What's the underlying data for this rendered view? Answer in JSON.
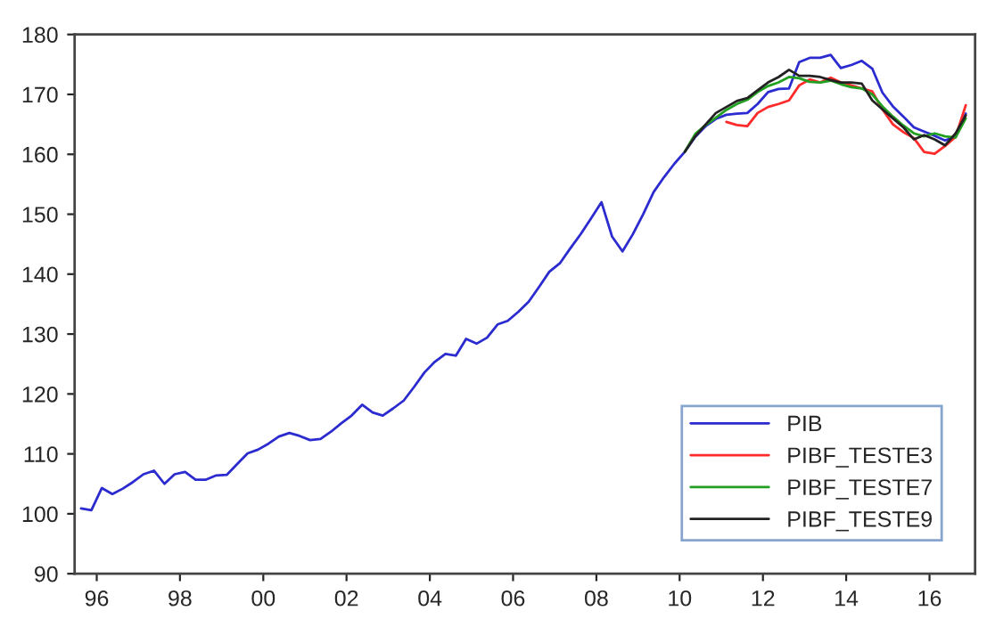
{
  "chart_data": {
    "type": "line",
    "xlim": [
      "1995-12-20",
      "2017-08-05"
    ],
    "ylim": [
      90,
      180
    ],
    "xticks": [
      {
        "value": "1996-07-01",
        "label": "96"
      },
      {
        "value": "1998-07-01",
        "label": "98"
      },
      {
        "value": "2000-07-01",
        "label": "00"
      },
      {
        "value": "2002-07-01",
        "label": "02"
      },
      {
        "value": "2004-07-01",
        "label": "04"
      },
      {
        "value": "2006-07-01",
        "label": "06"
      },
      {
        "value": "2008-07-01",
        "label": "08"
      },
      {
        "value": "2010-07-01",
        "label": "10"
      },
      {
        "value": "2012-07-01",
        "label": "12"
      },
      {
        "value": "2014-07-01",
        "label": "14"
      },
      {
        "value": "2016-07-01",
        "label": "16"
      }
    ],
    "yticks": [
      90,
      100,
      110,
      120,
      130,
      140,
      150,
      160,
      170,
      180
    ],
    "grid": false,
    "legend": "bottom right",
    "marker": "none",
    "line_style": "solid",
    "series": [
      {
        "name": "PIB",
        "color": "#2b2bd0",
        "x": [
          "1996-02-15",
          "1996-05-15",
          "1996-08-15",
          "1996-11-15",
          "1997-02-15",
          "1997-05-15",
          "1997-08-15",
          "1997-11-15",
          "1998-02-15",
          "1998-05-15",
          "1998-08-15",
          "1998-11-15",
          "1999-02-15",
          "1999-05-15",
          "1999-08-15",
          "1999-11-15",
          "2000-02-15",
          "2000-05-15",
          "2000-08-15",
          "2000-11-15",
          "2001-02-15",
          "2001-05-15",
          "2001-08-15",
          "2001-11-15",
          "2002-02-15",
          "2002-05-15",
          "2002-08-15",
          "2002-11-15",
          "2003-02-15",
          "2003-05-15",
          "2003-08-15",
          "2003-11-15",
          "2004-02-15",
          "2004-05-15",
          "2004-08-15",
          "2004-11-15",
          "2005-02-15",
          "2005-05-15",
          "2005-08-15",
          "2005-11-15",
          "2006-02-15",
          "2006-05-15",
          "2006-08-15",
          "2006-11-15",
          "2007-02-15",
          "2007-05-15",
          "2007-08-15",
          "2007-11-15",
          "2008-02-15",
          "2008-05-15",
          "2008-08-15",
          "2008-11-15",
          "2009-02-15",
          "2009-05-15",
          "2009-08-15",
          "2009-11-15",
          "2010-02-15",
          "2010-05-15",
          "2010-08-15",
          "2010-11-15",
          "2011-02-15",
          "2011-05-15",
          "2011-08-15",
          "2011-11-15",
          "2012-02-15",
          "2012-05-15",
          "2012-08-15",
          "2012-11-15",
          "2013-02-15",
          "2013-05-15",
          "2013-08-15",
          "2013-11-15",
          "2014-02-15",
          "2014-05-15",
          "2014-08-15",
          "2014-11-15",
          "2015-02-15",
          "2015-05-15",
          "2015-08-15",
          "2015-11-15",
          "2016-02-15",
          "2016-05-15",
          "2016-08-15",
          "2016-11-15",
          "2017-02-15",
          "2017-05-15"
        ],
        "values": [
          100.9,
          100.6,
          104.3,
          103.3,
          104.2,
          105.3,
          106.6,
          107.2,
          105.0,
          106.6,
          107.0,
          105.7,
          105.7,
          106.4,
          106.5,
          108.3,
          110.1,
          110.7,
          111.7,
          112.9,
          113.5,
          113.0,
          112.3,
          112.5,
          113.7,
          115.1,
          116.4,
          118.2,
          116.9,
          116.4,
          117.6,
          118.9,
          121.2,
          123.6,
          125.4,
          126.7,
          126.4,
          129.2,
          128.4,
          129.4,
          131.6,
          132.2,
          133.7,
          135.4,
          137.9,
          140.4,
          141.8,
          144.3,
          146.7,
          149.3,
          152.0,
          146.3,
          143.8,
          146.6,
          150.0,
          153.7,
          156.2,
          158.4,
          160.4,
          162.9,
          164.7,
          165.9,
          166.6,
          166.8,
          166.9,
          168.4,
          170.4,
          170.9,
          171.0,
          175.4,
          176.1,
          176.1,
          176.6,
          174.4,
          174.9,
          175.6,
          174.3,
          170.3,
          168.0,
          166.3,
          164.5,
          163.8,
          163.1,
          162.3,
          163.0,
          166.8
        ]
      },
      {
        "name": "PIBF_TESTE3",
        "color": "#ff2a2a",
        "x": [
          "2011-08-15",
          "2011-11-15",
          "2012-02-15",
          "2012-05-15",
          "2012-08-15",
          "2012-11-15",
          "2013-02-15",
          "2013-05-15",
          "2013-08-15",
          "2013-11-15",
          "2014-02-15",
          "2014-05-15",
          "2014-08-15",
          "2014-11-15",
          "2015-02-15",
          "2015-05-15",
          "2015-08-15",
          "2015-11-15",
          "2016-02-15",
          "2016-05-15",
          "2016-08-15",
          "2016-11-15",
          "2017-02-15",
          "2017-05-15"
        ],
        "values": [
          165.4,
          164.9,
          164.7,
          166.9,
          167.9,
          168.4,
          169.0,
          171.5,
          172.5,
          172.0,
          172.8,
          172.0,
          171.5,
          171.0,
          170.5,
          167.5,
          165.0,
          163.7,
          162.7,
          160.4,
          160.1,
          161.4,
          162.9,
          168.2
        ]
      },
      {
        "name": "PIBF_TESTE7",
        "color": "#22a022",
        "x": [
          "2010-08-15",
          "2010-11-15",
          "2011-02-15",
          "2011-05-15",
          "2011-08-15",
          "2011-11-15",
          "2012-02-15",
          "2012-05-15",
          "2012-08-15",
          "2012-11-15",
          "2013-02-15",
          "2013-05-15",
          "2013-08-15",
          "2013-11-15",
          "2014-02-15",
          "2014-05-15",
          "2014-08-15",
          "2014-11-15",
          "2015-02-15",
          "2015-05-15",
          "2015-08-15",
          "2015-11-15",
          "2016-02-15",
          "2016-05-15",
          "2016-08-15",
          "2016-11-15",
          "2017-02-15",
          "2017-05-15"
        ],
        "values": [
          160.4,
          163.4,
          164.9,
          166.1,
          167.4,
          168.4,
          169.1,
          170.4,
          171.4,
          172.0,
          172.9,
          172.7,
          172.1,
          172.0,
          172.3,
          171.7,
          171.2,
          171.0,
          170.0,
          168.0,
          166.3,
          164.8,
          163.5,
          163.0,
          163.5,
          163.0,
          162.8,
          166.0
        ]
      },
      {
        "name": "PIBF_TESTE9",
        "color": "#222222",
        "x": [
          "2010-08-15",
          "2010-11-15",
          "2011-02-15",
          "2011-05-15",
          "2011-08-15",
          "2011-11-15",
          "2012-02-15",
          "2012-05-15",
          "2012-08-15",
          "2012-11-15",
          "2013-02-15",
          "2013-05-15",
          "2013-08-15",
          "2013-11-15",
          "2014-02-15",
          "2014-05-15",
          "2014-08-15",
          "2014-11-15",
          "2015-02-15",
          "2015-05-15",
          "2015-08-15",
          "2015-11-15",
          "2016-02-15",
          "2016-05-15",
          "2016-08-15",
          "2016-11-15",
          "2017-02-15",
          "2017-05-15"
        ],
        "values": [
          160.4,
          163.0,
          165.0,
          166.9,
          167.9,
          168.9,
          169.4,
          170.7,
          172.0,
          172.9,
          174.1,
          173.1,
          173.1,
          172.9,
          172.4,
          172.0,
          172.0,
          171.8,
          169.0,
          167.5,
          166.0,
          164.5,
          162.5,
          163.2,
          162.5,
          161.5,
          163.5,
          166.5
        ]
      }
    ]
  }
}
